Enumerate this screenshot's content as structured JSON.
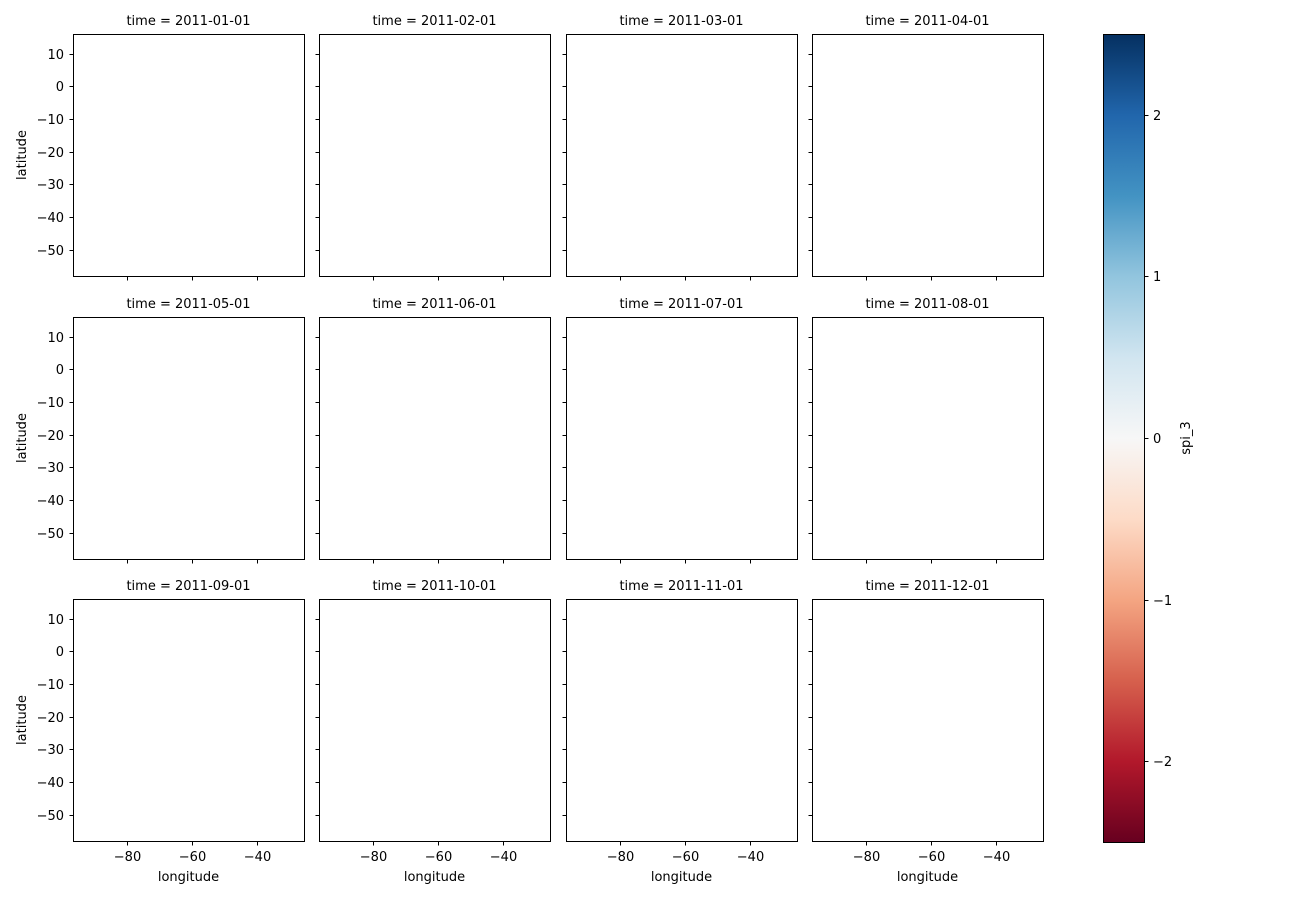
{
  "chart_data": {
    "type": "heatmap",
    "layout": "facet-grid",
    "rows": 3,
    "cols": 4,
    "facet_var": "time",
    "panels": [
      {
        "title": "time = 2011-01-01"
      },
      {
        "title": "time = 2011-02-01"
      },
      {
        "title": "time = 2011-03-01"
      },
      {
        "title": "time = 2011-04-01"
      },
      {
        "title": "time = 2011-05-01"
      },
      {
        "title": "time = 2011-06-01"
      },
      {
        "title": "time = 2011-07-01"
      },
      {
        "title": "time = 2011-08-01"
      },
      {
        "title": "time = 2011-09-01"
      },
      {
        "title": "time = 2011-10-01"
      },
      {
        "title": "time = 2011-11-01"
      },
      {
        "title": "time = 2011-12-01"
      }
    ],
    "xlabel": "longitude",
    "ylabel": "latitude",
    "xlim": [
      -96.5,
      -25.5
    ],
    "ylim": [
      -58.0,
      16.0
    ],
    "xticks": [
      -80,
      -60,
      -40
    ],
    "xtick_labels": [
      "−80",
      "−60",
      "−40"
    ],
    "yticks": [
      10,
      0,
      -10,
      -20,
      -30,
      -40,
      -50
    ],
    "ytick_labels": [
      "10",
      "0",
      "−10",
      "−20",
      "−30",
      "−40",
      "−50"
    ],
    "values": [],
    "grid": false,
    "colorbar": {
      "label": "spi_3",
      "colormap": "RdBu",
      "vmin": -2.5,
      "vmax": 2.5,
      "ticks": [
        2,
        1,
        0,
        -1,
        -2
      ],
      "tick_labels": [
        "2",
        "1",
        "0",
        "−1",
        "−2"
      ],
      "colors": [
        "#67001f",
        "#b2182b",
        "#d6604d",
        "#f4a582",
        "#fddbc7",
        "#f7f7f7",
        "#d1e5f0",
        "#92c5de",
        "#4393c3",
        "#2166ac",
        "#053061"
      ]
    }
  }
}
